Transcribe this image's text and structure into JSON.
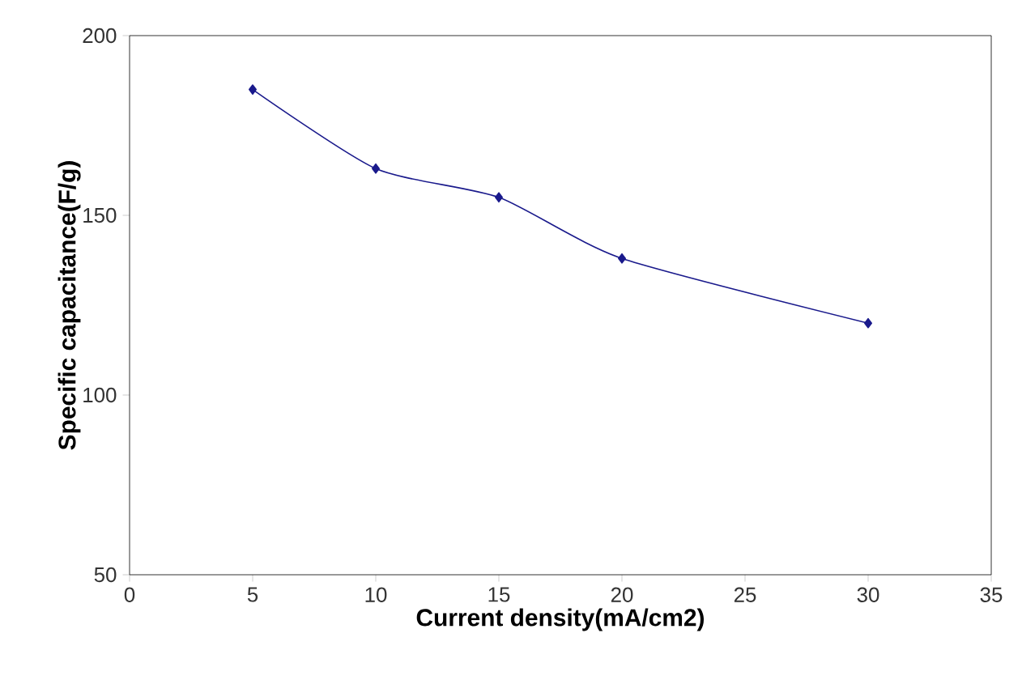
{
  "chart_data": {
    "type": "line",
    "xlabel": "Current density(mA/cm2)",
    "ylabel": "Specific capacitance(F/g)",
    "x": [
      5,
      10,
      15,
      20,
      30
    ],
    "series": [
      {
        "color": "#1a1a8c",
        "values": [
          185,
          163,
          155,
          138,
          120
        ]
      }
    ],
    "xlim": [
      0,
      35
    ],
    "xticks": [
      0,
      5,
      10,
      15,
      20,
      25,
      30,
      35
    ],
    "ylim": [
      50,
      200
    ],
    "yticks": [
      50,
      100,
      150,
      200
    ],
    "marker": "diamond",
    "line_style": "solid",
    "grid": false
  }
}
